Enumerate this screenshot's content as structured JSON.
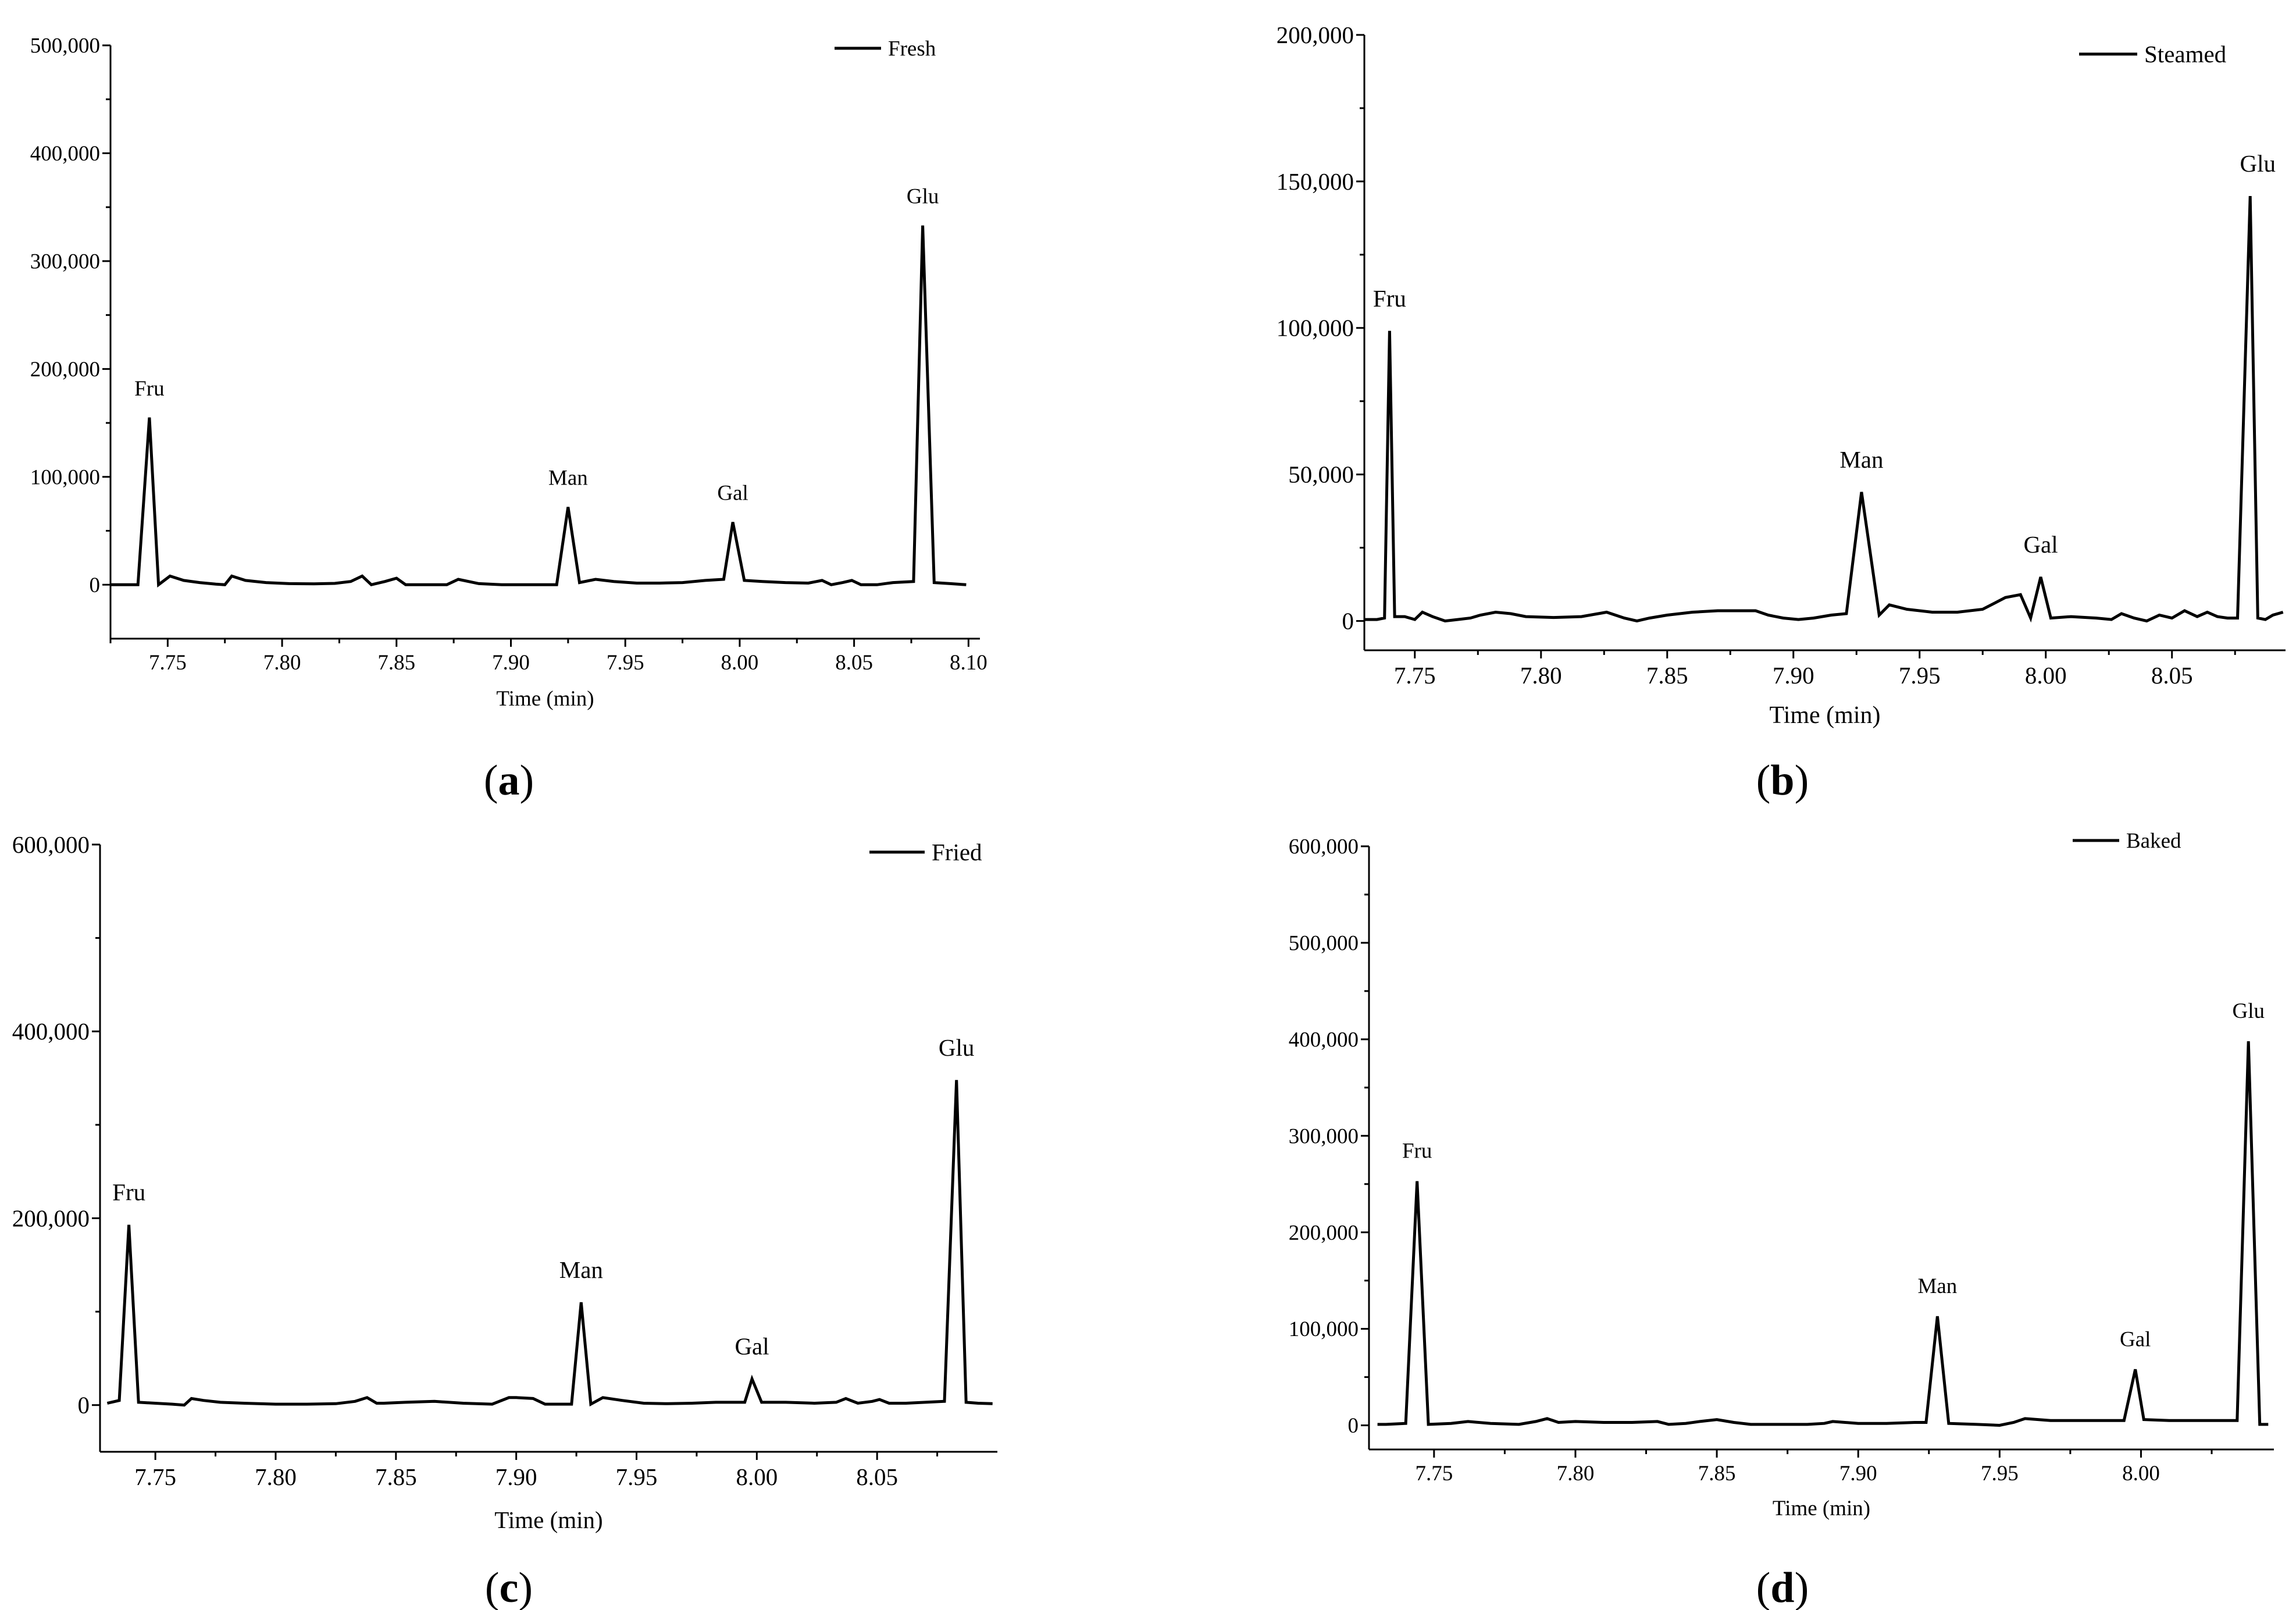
{
  "chart_data": [
    {
      "type": "line",
      "panel_label": [
        "(",
        "a",
        ")"
      ],
      "xlabel": "Time (min)",
      "ylabel": "",
      "xlim": [
        7.725,
        8.105
      ],
      "ylim": [
        -50000,
        500000
      ],
      "xticks": [
        7.75,
        7.8,
        7.85,
        7.9,
        7.95,
        8.0,
        8.05,
        8.1
      ],
      "xtick_labels": [
        "7.75",
        "7.80",
        "7.85",
        "7.90",
        "7.95",
        "8.00",
        "8.05",
        "8.10"
      ],
      "yticks": [
        0,
        100000,
        200000,
        300000,
        400000,
        500000
      ],
      "ytick_labels": [
        "0",
        "100,000",
        "200,000",
        "300,000",
        "400,000",
        "500,000"
      ],
      "legend": "top-right",
      "series": [
        {
          "name": "Fresh",
          "x": [
            7.725,
            7.728,
            7.737,
            7.742,
            7.746,
            7.751,
            7.757,
            7.764,
            7.771,
            7.775,
            7.778,
            7.784,
            7.793,
            7.803,
            7.814,
            7.823,
            7.83,
            7.835,
            7.839,
            7.845,
            7.85,
            7.854,
            7.858,
            7.865,
            7.872,
            7.877,
            7.886,
            7.896,
            7.906,
            7.916,
            7.92,
            7.925,
            7.93,
            7.937,
            7.945,
            7.955,
            7.965,
            7.975,
            7.985,
            7.993,
            7.997,
            8.002,
            8.01,
            8.02,
            8.03,
            8.036,
            8.04,
            8.045,
            8.049,
            8.053,
            8.06,
            8.067,
            8.076,
            8.08,
            8.085,
            8.092,
            8.099
          ],
          "y": [
            0,
            0,
            0,
            155000,
            0,
            8000,
            4000,
            2000,
            500,
            0,
            8000,
            4000,
            2000,
            1000,
            800,
            1200,
            3000,
            8000,
            0,
            3000,
            6000,
            0,
            0,
            0,
            0,
            5000,
            1000,
            0,
            0,
            0,
            0,
            72000,
            2000,
            5000,
            3000,
            1500,
            1500,
            2000,
            4000,
            5000,
            58000,
            4000,
            3000,
            2000,
            1500,
            4000,
            0,
            2000,
            4000,
            0,
            0,
            2000,
            3000,
            333000,
            2000,
            1000,
            0
          ]
        }
      ],
      "annotations": [
        {
          "text": "Fru",
          "x": 7.742,
          "y": 155000
        },
        {
          "text": "Man",
          "x": 7.925,
          "y": 72000
        },
        {
          "text": "Gal",
          "x": 7.997,
          "y": 58000
        },
        {
          "text": "Glu",
          "x": 8.08,
          "y": 333000
        }
      ]
    },
    {
      "type": "line",
      "panel_label": [
        "(",
        "b",
        ")"
      ],
      "xlabel": "Time (min)",
      "ylabel": "",
      "xlim": [
        7.73,
        8.095
      ],
      "ylim": [
        -10000,
        200000
      ],
      "xticks": [
        7.75,
        7.8,
        7.85,
        7.9,
        7.95,
        8.0,
        8.05
      ],
      "xtick_labels": [
        "7.75",
        "7.80",
        "7.85",
        "7.90",
        "7.95",
        "8.00",
        "8.05"
      ],
      "yticks": [
        0,
        50000,
        100000,
        150000,
        200000
      ],
      "ytick_labels": [
        "0",
        "50,000",
        "100,000",
        "150,000",
        "200,000"
      ],
      "legend": "top-right",
      "series": [
        {
          "name": "Steamed",
          "x": [
            7.73,
            7.735,
            7.738,
            7.74,
            7.742,
            7.746,
            7.75,
            7.753,
            7.757,
            7.762,
            7.767,
            7.772,
            7.776,
            7.782,
            7.788,
            7.794,
            7.805,
            7.816,
            7.826,
            7.833,
            7.838,
            7.843,
            7.85,
            7.86,
            7.87,
            7.874,
            7.885,
            7.89,
            7.896,
            7.902,
            7.908,
            7.915,
            7.921,
            7.927,
            7.934,
            7.938,
            7.945,
            7.955,
            7.965,
            7.975,
            7.984,
            7.99,
            7.994,
            7.998,
            8.002,
            8.01,
            8.02,
            8.026,
            8.03,
            8.035,
            8.04,
            8.045,
            8.05,
            8.055,
            8.06,
            8.064,
            8.068,
            8.072,
            8.076,
            8.081,
            8.084,
            8.087,
            8.09,
            8.094
          ],
          "y": [
            500,
            500,
            1000,
            99000,
            1500,
            1500,
            500,
            3000,
            1500,
            0,
            500,
            1000,
            2000,
            3000,
            2500,
            1500,
            1200,
            1500,
            3000,
            1000,
            0,
            1000,
            2000,
            3000,
            3500,
            3500,
            3500,
            2000,
            1000,
            500,
            1000,
            2000,
            2500,
            44000,
            2000,
            5500,
            4000,
            3000,
            3000,
            4000,
            8000,
            9000,
            1000,
            15000,
            1000,
            1500,
            1000,
            500,
            2500,
            1000,
            0,
            2000,
            1000,
            3500,
            1500,
            3000,
            1500,
            1000,
            1000,
            145000,
            1000,
            500,
            2000,
            3000
          ]
        }
      ],
      "annotations": [
        {
          "text": "Fru",
          "x": 7.74,
          "y": 99000
        },
        {
          "text": "Man",
          "x": 7.927,
          "y": 44000
        },
        {
          "text": "Gal",
          "x": 7.998,
          "y": 15000
        },
        {
          "text": "Glu",
          "x": 8.084,
          "y": 145000
        }
      ]
    },
    {
      "type": "line",
      "panel_label": [
        "(",
        "c",
        ")"
      ],
      "xlabel": "Time (min)",
      "ylabel": "",
      "xlim": [
        7.727,
        8.1
      ],
      "ylim": [
        -50000,
        600000
      ],
      "xticks": [
        7.75,
        7.8,
        7.85,
        7.9,
        7.95,
        8.0,
        8.05
      ],
      "xtick_labels": [
        "7.75",
        "7.80",
        "7.85",
        "7.90",
        "7.95",
        "8.00",
        "8.05"
      ],
      "yticks": [
        0,
        200000,
        400000,
        600000
      ],
      "ytick_labels": [
        "0",
        "200,000",
        "400,000",
        "600,000"
      ],
      "legend": "top-right",
      "series": [
        {
          "name": "Fried",
          "x": [
            7.73,
            7.735,
            7.739,
            7.743,
            7.75,
            7.757,
            7.762,
            7.765,
            7.77,
            7.777,
            7.787,
            7.8,
            7.813,
            7.825,
            7.833,
            7.838,
            7.842,
            7.845,
            7.854,
            7.866,
            7.878,
            7.89,
            7.897,
            7.9,
            7.907,
            7.912,
            7.918,
            7.923,
            7.927,
            7.931,
            7.936,
            7.944,
            7.953,
            7.963,
            7.973,
            7.983,
            7.995,
            7.998,
            8.002,
            8.012,
            8.024,
            8.033,
            8.037,
            8.042,
            8.048,
            8.051,
            8.055,
            8.062,
            8.07,
            8.078,
            8.083,
            8.087,
            8.092,
            8.098
          ],
          "y": [
            2000,
            5000,
            193000,
            3000,
            2000,
            1000,
            0,
            7000,
            5000,
            3000,
            2000,
            1000,
            1000,
            1500,
            4000,
            8000,
            2000,
            2000,
            3000,
            4000,
            2000,
            1000,
            8000,
            8000,
            7000,
            1000,
            1000,
            1000,
            110000,
            1000,
            8000,
            5000,
            2000,
            1500,
            2000,
            3000,
            3000,
            28000,
            3000,
            3000,
            2000,
            3000,
            7000,
            2000,
            4000,
            6000,
            2000,
            2000,
            3000,
            4000,
            348000,
            3000,
            2000,
            1500
          ]
        }
      ],
      "annotations": [
        {
          "text": "Fru",
          "x": 7.739,
          "y": 193000
        },
        {
          "text": "Man",
          "x": 7.927,
          "y": 110000
        },
        {
          "text": "Gal",
          "x": 7.998,
          "y": 28000
        },
        {
          "text": "Glu",
          "x": 8.083,
          "y": 348000
        }
      ]
    },
    {
      "type": "line",
      "panel_label": [
        "(",
        "d",
        ")"
      ],
      "xlabel": "Time (min)",
      "ylabel": "",
      "xlim": [
        7.727,
        8.047
      ],
      "ylim": [
        -25000,
        600000
      ],
      "xticks": [
        7.75,
        7.8,
        7.85,
        7.9,
        7.95,
        8.0
      ],
      "xtick_labels": [
        "7.75",
        "7.80",
        "7.85",
        "7.90",
        "7.95",
        "8.00"
      ],
      "yticks": [
        0,
        100000,
        200000,
        300000,
        400000,
        500000,
        600000
      ],
      "ytick_labels": [
        "0",
        "100,000",
        "200,000",
        "300,000",
        "400,000",
        "500,000",
        "600,000"
      ],
      "legend": "top-right",
      "series": [
        {
          "name": "Baked",
          "x": [
            7.73,
            7.733,
            7.74,
            7.744,
            7.748,
            7.756,
            7.762,
            7.77,
            7.78,
            7.786,
            7.79,
            7.794,
            7.8,
            7.81,
            7.82,
            7.829,
            7.833,
            7.839,
            7.844,
            7.85,
            7.856,
            7.862,
            7.872,
            7.882,
            7.888,
            7.891,
            7.9,
            7.91,
            7.92,
            7.924,
            7.928,
            7.932,
            7.942,
            7.95,
            7.955,
            7.959,
            7.968,
            7.978,
            7.988,
            7.994,
            7.998,
            8.001,
            8.01,
            8.02,
            8.029,
            8.034,
            8.038,
            8.042,
            8.045
          ],
          "y": [
            1000,
            1000,
            2000,
            253000,
            1000,
            2000,
            4000,
            2000,
            1000,
            4000,
            7000,
            3000,
            4000,
            3000,
            3000,
            4000,
            1000,
            2000,
            4000,
            6000,
            3000,
            1000,
            1000,
            1000,
            2000,
            4000,
            2000,
            2000,
            3000,
            3000,
            113000,
            2000,
            1000,
            0,
            3000,
            7000,
            5000,
            5000,
            5000,
            5000,
            58000,
            6000,
            5000,
            5000,
            5000,
            5000,
            398000,
            1000,
            1000
          ]
        }
      ],
      "annotations": [
        {
          "text": "Fru",
          "x": 7.744,
          "y": 253000
        },
        {
          "text": "Man",
          "x": 7.928,
          "y": 113000
        },
        {
          "text": "Gal",
          "x": 7.998,
          "y": 58000
        },
        {
          "text": "Glu",
          "x": 8.038,
          "y": 398000
        }
      ]
    }
  ]
}
